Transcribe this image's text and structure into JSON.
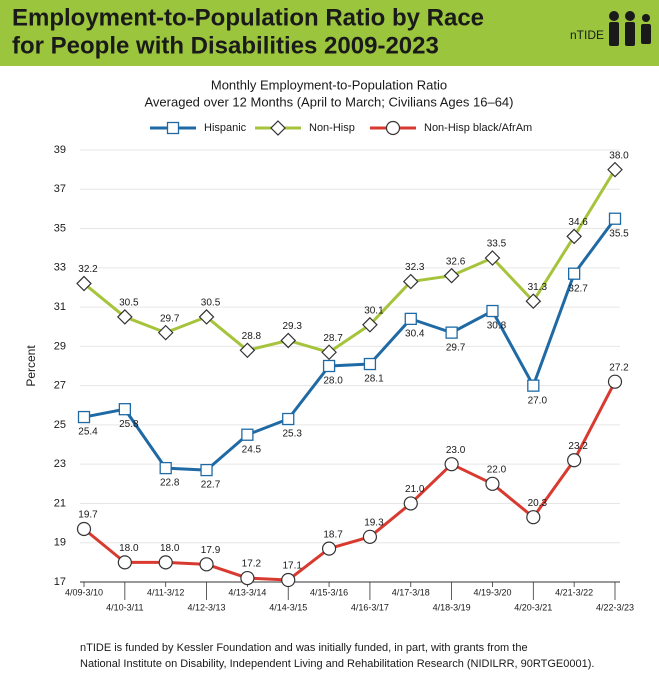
{
  "chart_data": {
    "type": "line",
    "title": [
      "Employment-to-Population Ratio by Race",
      "for People with Disabilities 2009-2023"
    ],
    "logo": "nTIDE",
    "subtitle": [
      "Monthly Employment-to-Population Ratio",
      "Averaged over 12 Months (April to March; Civilians Ages 16–64)"
    ],
    "y_label": "Percent",
    "categories": [
      "4/09-3/10",
      "4/10-3/11",
      "4/11-3/12",
      "4/12-3/13",
      "4/13-3/14",
      "4/14-3/15",
      "4/15-3/16",
      "4/16-3/17",
      "4/17-3/18",
      "4/18-3/19",
      "4/19-3/20",
      "4/20-3/21",
      "4/21-3/22",
      "4/22-3/23"
    ],
    "series": [
      {
        "name": "Hispanic",
        "color": "#1f6aa5",
        "marker": "square",
        "values": [
          25.4,
          25.8,
          22.8,
          22.7,
          24.5,
          25.3,
          28.0,
          28.1,
          30.4,
          29.7,
          30.8,
          27.0,
          32.7,
          35.5
        ],
        "value_labels": [
          "25.4",
          "25.8",
          "22.8",
          "22.7",
          "24.5",
          "25.3",
          "28.0",
          "28.1",
          "30.4",
          "29.7",
          "30.8",
          "27.0",
          "32.7",
          "35.5"
        ]
      },
      {
        "name": "Non-Hisp",
        "color": "#a6c43b",
        "marker": "diamond",
        "values": [
          32.2,
          30.5,
          29.7,
          30.5,
          28.8,
          29.3,
          28.7,
          30.1,
          32.3,
          32.6,
          33.5,
          31.3,
          34.6,
          38.0
        ],
        "value_labels": [
          "32.2",
          "30.5",
          "29.7",
          "30.5",
          "28.8",
          "29.3",
          "28.7",
          "30.1",
          "32.3",
          "32.6",
          "33.5",
          "31.3",
          "34.6",
          "38.0"
        ]
      },
      {
        "name": "Non-Hisp black/AfrAm",
        "color": "#d93a2f",
        "marker": "circle",
        "values": [
          19.7,
          18.0,
          18.0,
          17.9,
          17.2,
          17.1,
          18.7,
          19.3,
          21.0,
          23.0,
          22.0,
          20.3,
          23.2,
          27.2
        ],
        "value_labels": [
          "19.7",
          "18.0",
          "18.0",
          "17.9",
          "17.2",
          "17.1",
          "18.7",
          "19.3",
          "21.0",
          "23.0",
          "22.0",
          "20.3",
          "23.2",
          "27.2"
        ]
      }
    ],
    "ylim": [
      17,
      39
    ],
    "yticks": [
      17,
      19,
      21,
      23,
      25,
      27,
      29,
      31,
      33,
      35,
      37,
      39
    ],
    "grid": true,
    "note": [
      "nTIDE is funded by Kessler Foundation and was initially funded, in part, with grants from the",
      "National Institute on Disability, Independent Living and Rehabilitation Research (NIDILRR, 90RTGE0001)."
    ]
  }
}
